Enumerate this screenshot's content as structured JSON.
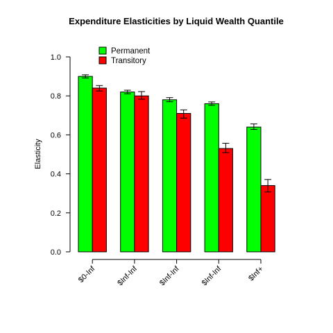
{
  "chart_data": {
    "type": "bar",
    "title": "Expenditure Elasticities by  Liquid Wealth Quantile",
    "xlabel": "",
    "ylabel": "Elasticity",
    "ylim": [
      0.0,
      1.0
    ],
    "yticks": [
      "0.0",
      "0.2",
      "0.4",
      "0.6",
      "0.8",
      "1.0"
    ],
    "categories": [
      "$0-Inf",
      "$Inf-Inf",
      "$Inf-Inf",
      "$Inf-Inf",
      "$Inf+"
    ],
    "series": [
      {
        "name": "Permanent",
        "color": "#00ff00",
        "values": [
          0.9,
          0.82,
          0.78,
          0.76,
          0.64
        ],
        "err_low": [
          0.892,
          0.811,
          0.77,
          0.752,
          0.628
        ],
        "err_high": [
          0.908,
          0.829,
          0.791,
          0.769,
          0.656
        ]
      },
      {
        "name": "Transitory",
        "color": "#ff0000",
        "values": [
          0.84,
          0.8,
          0.71,
          0.53,
          0.34
        ],
        "err_low": [
          0.825,
          0.783,
          0.686,
          0.509,
          0.307
        ],
        "err_high": [
          0.853,
          0.822,
          0.728,
          0.557,
          0.371
        ]
      }
    ],
    "legend": {
      "position": "top-left"
    },
    "grid": false
  }
}
